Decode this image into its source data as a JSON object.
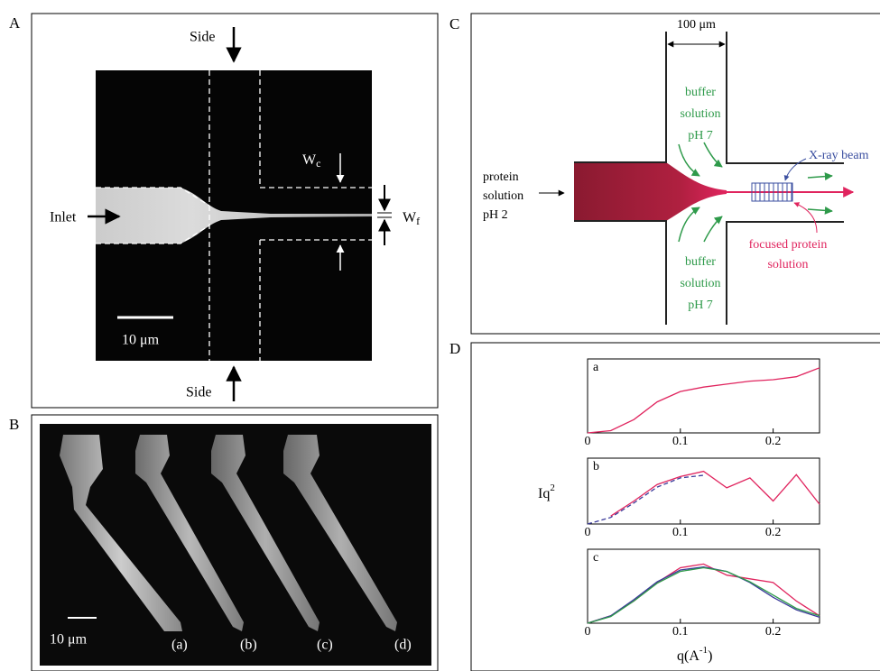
{
  "panels": {
    "A": {
      "label": "A",
      "side_top": "Side",
      "side_bottom": "Side",
      "inlet": "Inlet",
      "wc": "W",
      "wc_sub": "c",
      "wf": "W",
      "wf_sub": "f",
      "scale": "10 μm"
    },
    "B": {
      "label": "B",
      "scale": "10 μm",
      "items": [
        "(a)",
        "(b)",
        "(c)",
        "(d)"
      ]
    },
    "C": {
      "label": "C",
      "width": "100 μm",
      "protein": [
        "protein",
        "solution",
        "pH 2"
      ],
      "buffer_top": [
        "buffer",
        "solution",
        "pH 7"
      ],
      "buffer_bottom": [
        "buffer",
        "solution",
        "pH 7"
      ],
      "xray": "X-ray beam",
      "focused": [
        "focused protein",
        "solution"
      ]
    },
    "D": {
      "label": "D",
      "ylabel": "Iq",
      "ylabel_sup": "2",
      "xlabel": "q(A",
      "xlabel_sup": "-1",
      "xlabel_end": ")",
      "plots": [
        {
          "label": "a",
          "xlim": [
            0,
            0.25
          ],
          "ylim": [
            0,
            1
          ],
          "xticks": [
            0,
            0.1,
            0.2
          ],
          "x": [
            0,
            0.025,
            0.05,
            0.075,
            0.1,
            0.125,
            0.15,
            0.175,
            0.2,
            0.225,
            0.25
          ],
          "series": [
            {
              "color": "#e0245e",
              "dash": false,
              "y": [
                0,
                0.03,
                0.18,
                0.42,
                0.56,
                0.62,
                0.66,
                0.7,
                0.72,
                0.76,
                0.88
              ]
            }
          ]
        },
        {
          "label": "b",
          "xlim": [
            0,
            0.25
          ],
          "ylim": [
            0,
            1
          ],
          "xticks": [
            0,
            0.1,
            0.2
          ],
          "x": [
            0,
            0.025,
            0.05,
            0.075,
            0.1,
            0.125,
            0.15,
            0.175,
            0.2,
            0.225,
            0.25
          ],
          "series": [
            {
              "color": "#e0245e",
              "dash": false,
              "y": [
                null,
                0.12,
                0.35,
                0.6,
                0.72,
                0.8,
                0.55,
                0.7,
                0.35,
                0.75,
                0.3
              ]
            },
            {
              "color": "#3a3a9a",
              "dash": true,
              "y": [
                0,
                0.1,
                0.32,
                0.56,
                0.7,
                0.74,
                null,
                null,
                null,
                null,
                null
              ]
            }
          ]
        },
        {
          "label": "c",
          "xlim": [
            0,
            0.25
          ],
          "ylim": [
            0,
            1
          ],
          "xticks": [
            0,
            0.1,
            0.2
          ],
          "x": [
            0,
            0.025,
            0.05,
            0.075,
            0.1,
            0.125,
            0.15,
            0.175,
            0.2,
            0.225,
            0.25
          ],
          "series": [
            {
              "color": "#e0245e",
              "dash": false,
              "y": [
                0,
                0.1,
                0.3,
                0.55,
                0.75,
                0.8,
                0.65,
                0.6,
                0.55,
                0.3,
                0.1
              ]
            },
            {
              "color": "#3a3a9a",
              "dash": false,
              "y": [
                0,
                0.1,
                0.32,
                0.56,
                0.72,
                0.76,
                0.7,
                0.55,
                0.35,
                0.18,
                0.08
              ]
            },
            {
              "color": "#2e9a4a",
              "dash": false,
              "y": [
                0,
                0.09,
                0.3,
                0.54,
                0.7,
                0.75,
                0.7,
                0.56,
                0.38,
                0.2,
                0.1
              ]
            }
          ]
        }
      ]
    }
  }
}
